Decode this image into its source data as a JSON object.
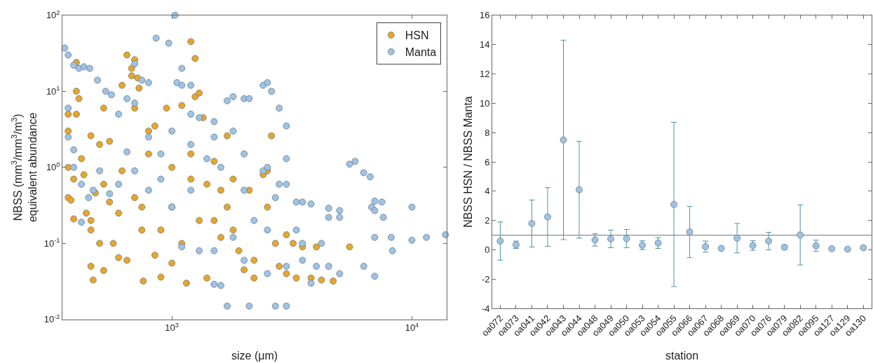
{
  "chart_data": [
    {
      "type": "scatter",
      "xlabel": "size (μm)",
      "ylabel": "NBSS (mm$^{3}$/mm$^{3}$/m$^{3}$)\nequivalent abundance",
      "log": "xy",
      "xlim": [
        350,
        14000
      ],
      "ylim": [
        0.01,
        100
      ],
      "xticks": [
        {
          "value": 1000,
          "label": "10$^{3}$"
        },
        {
          "value": 10000,
          "label": "10$^{4}$"
        }
      ],
      "yticks": [
        {
          "value": 0.01,
          "label": "10$^{-2}$"
        },
        {
          "value": 0.1,
          "label": "10$^{-1}$"
        },
        {
          "value": 1,
          "label": "10$^{0}$"
        },
        {
          "value": 10,
          "label": "10$^{1}$"
        },
        {
          "value": 100,
          "label": "10$^{2}$"
        }
      ],
      "grid": false,
      "legend": "top right",
      "marker": "circle",
      "series": [
        {
          "name": "HSN",
          "color": "#e8a628",
          "x": [
            370,
            370,
            370,
            370,
            380,
            390,
            390,
            400,
            400,
            410,
            400,
            420,
            430,
            440,
            460,
            460,
            460,
            460,
            470,
            480,
            500,
            500,
            520,
            520,
            520,
            550,
            550,
            570,
            600,
            620,
            620,
            650,
            650,
            680,
            680,
            700,
            700,
            720,
            730,
            750,
            760,
            800,
            850,
            900,
            950,
            1000,
            1100,
            1150,
            1200,
            1250,
            1250,
            1300,
            1350,
            1200,
            1400,
            1500,
            1700,
            1700,
            1800,
            2000,
            2100,
            2200,
            2400,
            2500,
            2500,
            2600,
            2700,
            2800,
            3000,
            3200,
            3300,
            3500,
            3800,
            4000,
            4200,
            4700,
            5500,
            1000,
            800,
            900,
            1100,
            1300,
            1600,
            1900,
            700,
            600,
            1000,
            1200,
            1400,
            1600,
            2200,
            3000,
            1800,
            1500,
            850,
            750
          ],
          "values": [
            5,
            3,
            1,
            0.4,
            0.37,
            0.7,
            0.21,
            24,
            10,
            8,
            5,
            1.3,
            0.8,
            0.25,
            2.6,
            0.2,
            0.15,
            0.05,
            0.033,
            0.46,
            2,
            0.1,
            6,
            0.6,
            0.044,
            2.2,
            0.35,
            0.1,
            0.065,
            12,
            0.9,
            0.06,
            30,
            20,
            16,
            26,
            6,
            15,
            11,
            0.3,
            0.032,
            3,
            0.07,
            0.036,
            6,
            0.055,
            6.5,
            0.03,
            45,
            27,
            8.5,
            9.5,
            4.5,
            0.7,
            0.035,
            0.2,
            2.6,
            0.3,
            0.15,
            0.045,
            0.5,
            0.035,
            0.8,
            0.9,
            0.3,
            2.6,
            0.1,
            0.05,
            0.13,
            0.1,
            0.035,
            0.09,
            0.035,
            0.09,
            0.033,
            0.032,
            0.09,
            1,
            1.5,
            0.15,
            0.1,
            0.2,
            0.5,
            0.08,
            0.4,
            0.25,
            0.3,
            1.5,
            0.6,
            0.12,
            0.06,
            0.04,
            0.7,
            1.2,
            3.5,
            0.15
          ]
        },
        {
          "name": "Manta",
          "color": "#9dc3e6",
          "x": [
            358,
            370,
            390,
            410,
            430,
            455,
            490,
            370,
            370,
            390,
            390,
            420,
            450,
            420,
            530,
            560,
            600,
            650,
            700,
            700,
            750,
            800,
            860,
            970,
            1030,
            1100,
            1050,
            1100,
            1200,
            1300,
            1500,
            1700,
            1800,
            2000,
            2100,
            2400,
            2500,
            2600,
            2800,
            3000,
            3000,
            2400,
            2800,
            3000,
            3300,
            3500,
            3800,
            4500,
            4500,
            5000,
            5000,
            5500,
            5800,
            6300,
            6700,
            6800,
            7000,
            7000,
            7500,
            7600,
            7000,
            8200,
            8300,
            10000,
            10000,
            11500,
            13800,
            6300,
            7000,
            5000,
            4500,
            3500,
            3800,
            4000,
            1700,
            2100,
            2700,
            3000,
            1600,
            1500,
            1000,
            900,
            800,
            1200,
            1400,
            1600,
            2000,
            2200,
            2500,
            1800,
            1300,
            1100,
            600,
            700,
            800,
            550,
            1000,
            1200,
            1500,
            1800,
            2000,
            2500,
            2700,
            3300,
            3500,
            4200,
            3000,
            2500,
            2000,
            1500,
            1200,
            900,
            650,
            500,
            470
          ],
          "values": [
            37,
            30,
            22,
            20,
            21,
            20,
            14,
            6,
            2.5,
            1.7,
            1,
            0.6,
            0.4,
            0.19,
            10,
            9,
            5,
            8,
            7,
            23,
            14,
            13,
            50,
            43,
            100,
            20,
            13,
            12,
            12,
            4.5,
            4,
            7.5,
            8.5,
            8,
            8,
            12,
            13,
            10,
            6,
            3.5,
            1.3,
            0.9,
            0.6,
            0.6,
            0.35,
            0.35,
            0.33,
            0.29,
            0.22,
            0.27,
            0.22,
            1.1,
            1.2,
            0.85,
            0.75,
            0.3,
            0.27,
            0.36,
            0.35,
            0.22,
            0.12,
            0.12,
            0.08,
            0.3,
            0.11,
            0.12,
            0.13,
            0.05,
            0.037,
            0.04,
            0.05,
            0.06,
            0.03,
            0.05,
            0.015,
            0.015,
            0.015,
            0.015,
            0.028,
            0.029,
            0.3,
            1.5,
            2.5,
            2,
            1.3,
            1,
            0.5,
            0.2,
            0.15,
            0.12,
            0.08,
            0.09,
            0.6,
            0.9,
            0.5,
            0.45,
            3,
            5,
            2.5,
            3,
            1.5,
            1,
            0.4,
            0.15,
            0.1,
            0.1,
            0.05,
            0.04,
            0.06,
            0.08,
            0.5,
            0.7,
            1.6,
            0.9,
            0.5
          ]
        }
      ]
    },
    {
      "type": "scatter",
      "xlabel": "station",
      "ylabel": "NBSS HSN / NBSS Manta",
      "ylim": [
        -4,
        16
      ],
      "yticks": [
        -4,
        -2,
        0,
        2,
        4,
        6,
        8,
        10,
        12,
        14,
        16
      ],
      "grid": false,
      "legend": false,
      "marker": "circle",
      "categories": [
        "oa072",
        "oa073",
        "oa041",
        "oa042",
        "oa043",
        "oa044",
        "oa048",
        "oa049",
        "oa050",
        "oa053",
        "oa054",
        "oa055",
        "oa066",
        "oa067",
        "oa068",
        "oa069",
        "oa070",
        "oa076",
        "oa079",
        "oa082",
        "oa095",
        "oa127",
        "oa129",
        "oa130"
      ],
      "values": [
        0.6,
        0.35,
        1.8,
        2.25,
        7.5,
        4.1,
        0.68,
        0.75,
        0.77,
        0.32,
        0.47,
        3.1,
        1.22,
        0.22,
        0.1,
        0.8,
        0.3,
        0.6,
        0.18,
        1.02,
        0.28,
        0.08,
        0.05,
        0.15
      ],
      "errors": [
        1.3,
        0.25,
        1.6,
        2.0,
        6.8,
        3.3,
        0.42,
        0.6,
        0.62,
        0.3,
        0.37,
        5.6,
        1.75,
        0.38,
        0.07,
        1.0,
        0.33,
        0.6,
        0.15,
        2.05,
        0.38,
        0.05,
        0.04,
        0.08
      ],
      "color": "#9dc3e6",
      "ref_lines": [
        {
          "axis": "y",
          "value": 1,
          "color": "#707070"
        }
      ]
    }
  ]
}
